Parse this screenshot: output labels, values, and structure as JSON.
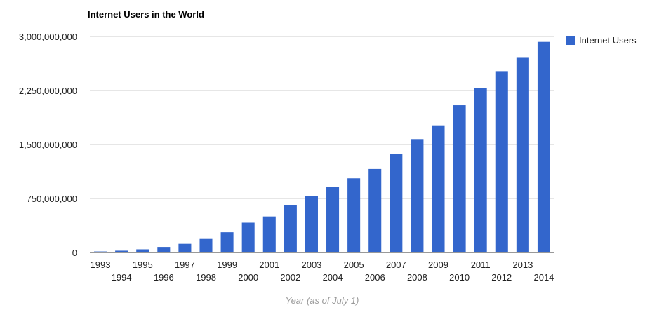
{
  "chart_data": {
    "type": "bar",
    "title": "Internet Users in the World",
    "xlabel": "Year (as of July 1)",
    "ylabel": "",
    "ylim": [
      0,
      3000000000
    ],
    "yticks": [
      0,
      750000000,
      1500000000,
      2250000000,
      3000000000
    ],
    "ytick_labels": [
      "0",
      "750,000,000",
      "1,500,000,000",
      "2,250,000,000",
      "3,000,000,000"
    ],
    "categories": [
      "1993",
      "1994",
      "1995",
      "1996",
      "1997",
      "1998",
      "1999",
      "2000",
      "2001",
      "2002",
      "2003",
      "2004",
      "2005",
      "2006",
      "2007",
      "2008",
      "2009",
      "2010",
      "2011",
      "2012",
      "2013",
      "2014"
    ],
    "series": [
      {
        "name": "Internet Users",
        "color": "#3366cc",
        "values": [
          14000000,
          25000000,
          44000000,
          77000000,
          120000000,
          188000000,
          281000000,
          414000000,
          500000000,
          662000000,
          781000000,
          911000000,
          1030000000,
          1160000000,
          1373000000,
          1575000000,
          1766000000,
          2045000000,
          2280000000,
          2519000000,
          2713000000,
          2925000000
        ]
      }
    ],
    "grid": true,
    "legend_position": "right"
  }
}
